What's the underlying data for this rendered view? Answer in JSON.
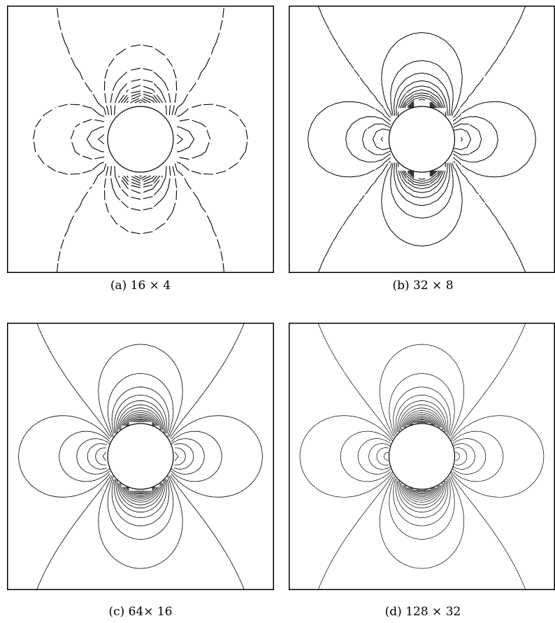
{
  "figure": {
    "panels": [
      {
        "id": "a",
        "caption": "(a) 16 × 4",
        "grid": [
          16,
          4
        ]
      },
      {
        "id": "b",
        "caption": "(b) 32 × 8",
        "grid": [
          32,
          8
        ]
      },
      {
        "id": "c",
        "caption": "(c) 64× 16",
        "grid": [
          64,
          16
        ]
      },
      {
        "id": "d",
        "caption": "(d) 128 × 32",
        "grid": [
          128,
          32
        ]
      }
    ],
    "line_color": "#000000",
    "background": "#ffffff"
  }
}
